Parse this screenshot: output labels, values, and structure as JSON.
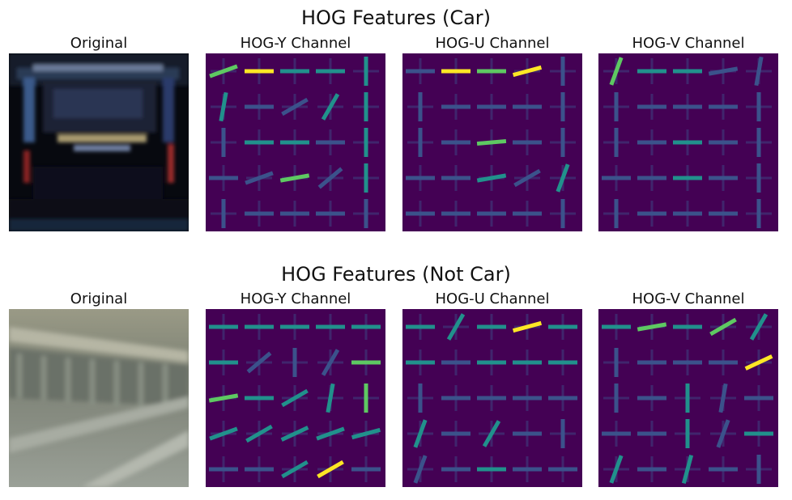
{
  "figure": {
    "rows": [
      {
        "title": "HOG Features (Car)",
        "panels": [
          {
            "title": "Original",
            "kind": "photo",
            "subject": "rear of a dark car"
          },
          {
            "title": "HOG-Y Channel",
            "kind": "hog"
          },
          {
            "title": "HOG-U Channel",
            "kind": "hog"
          },
          {
            "title": "HOG-V Channel",
            "kind": "hog"
          }
        ]
      },
      {
        "title": "HOG Features (Not Car)",
        "panels": [
          {
            "title": "Original",
            "kind": "photo",
            "subject": "grey road guardrail"
          },
          {
            "title": "HOG-Y Channel",
            "kind": "hog"
          },
          {
            "title": "HOG-U Channel",
            "kind": "hog"
          },
          {
            "title": "HOG-V Channel",
            "kind": "hog"
          }
        ]
      }
    ]
  },
  "colors": {
    "hog_background": "#440154",
    "hog_low": "#3b528b",
    "hog_mid": "#21918c",
    "hog_high": "#5ec962",
    "hog_peak": "#fde725"
  }
}
